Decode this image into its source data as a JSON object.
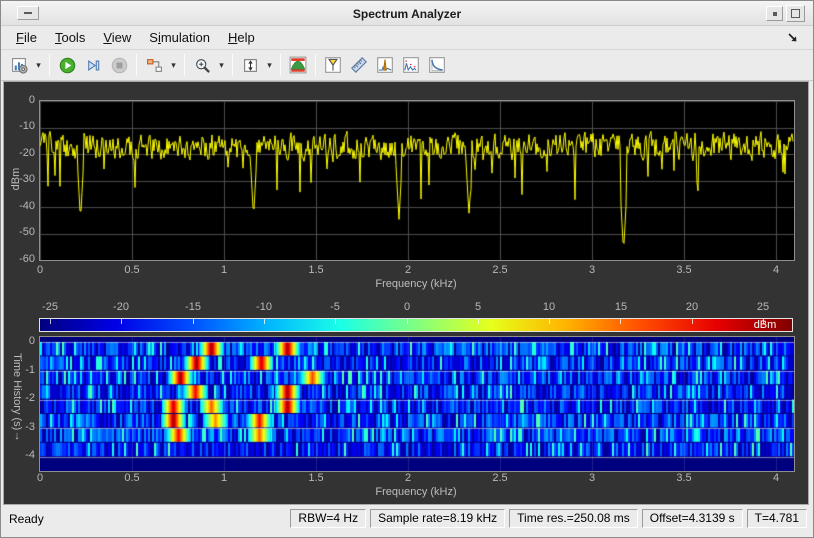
{
  "window": {
    "title": "Spectrum Analyzer",
    "controls": [
      "window-menu",
      "minimize",
      "maximize"
    ]
  },
  "menu": {
    "items": [
      {
        "pre": "",
        "key": "F",
        "post": "ile"
      },
      {
        "pre": "",
        "key": "T",
        "post": "ools"
      },
      {
        "pre": "",
        "key": "V",
        "post": "iew"
      },
      {
        "pre": "S",
        "key": "i",
        "post": "mulation"
      },
      {
        "pre": "",
        "key": "H",
        "post": "elp"
      }
    ],
    "dock_icon": "dock-arrow"
  },
  "toolbar": {
    "caret": "▾",
    "buttons": [
      "scope-settings",
      "run",
      "step-forward",
      "stop",
      "source-select",
      "zoom-in",
      "span-xy",
      "spectrogram-toggle",
      "cursor-measurements",
      "signal-statistics",
      "peak-finder",
      "distortion-measurements",
      "ccdf-measurements"
    ]
  },
  "spectrum": {
    "ylabel": "dBm",
    "xlabel": "Frequency (kHz)",
    "yticks": [
      "0",
      "-10",
      "-20",
      "-30",
      "-40",
      "-50",
      "-60"
    ],
    "xticks": [
      "0",
      "0.5",
      "1",
      "1.5",
      "2",
      "2.5",
      "3",
      "3.5",
      "4"
    ]
  },
  "colorbar": {
    "label": "dBm",
    "ticks": [
      "-25",
      "-20",
      "-15",
      "-10",
      "-5",
      "0",
      "5",
      "10",
      "15",
      "20",
      "25"
    ]
  },
  "spectrogram": {
    "ylabel": "Time History (s)",
    "ylabel_arrow": "↓",
    "xlabel": "Frequency (kHz)",
    "yticks": [
      "0",
      "-1",
      "-2",
      "-3",
      "-4"
    ],
    "xticks": [
      "0",
      "0.5",
      "1",
      "1.5",
      "2",
      "2.5",
      "3",
      "3.5",
      "4"
    ]
  },
  "statusbar": {
    "ready": "Ready",
    "fields": [
      "RBW=4 Hz",
      "Sample rate=8.19 kHz",
      "Time res.=250.08 ms",
      "Offset=4.3139 s",
      "T=4.781"
    ]
  },
  "chart_data": [
    {
      "type": "line",
      "title": "Spectrum",
      "xlabel": "Frequency (kHz)",
      "ylabel": "dBm",
      "xlim": [
        0,
        4.096
      ],
      "ylim": [
        -60,
        0
      ],
      "grid": true,
      "bg": "#000000",
      "line_color": "#ffff00",
      "series": [
        {
          "name": "spectrum-trace",
          "noise_floor_dbm": -17,
          "noise_peak_to_peak_db": 13,
          "notable_dips": [
            {
              "x_khz": 0.22,
              "y_dbm": -45
            },
            {
              "x_khz": 1.16,
              "y_dbm": -44
            },
            {
              "x_khz": 1.95,
              "y_dbm": -45
            },
            {
              "x_khz": 2.33,
              "y_dbm": -43
            },
            {
              "x_khz": 3.17,
              "y_dbm": -57
            }
          ]
        }
      ]
    },
    {
      "type": "heatmap",
      "title": "Spectrogram Time History",
      "xlabel": "Frequency (kHz)",
      "ylabel": "Time History (s)",
      "xlim": [
        0,
        4.096
      ],
      "ylim": [
        -4.1,
        0
      ],
      "colormap": "jet",
      "colorbar_range_dbm": [
        -25,
        25
      ],
      "noise_floor_range_dbm": [
        -26,
        -12
      ],
      "hot_spots": [
        {
          "f_khz": 0.93,
          "time_row": 0,
          "strength": 1
        },
        {
          "f_khz": 1.34,
          "time_row": 0,
          "strength": 1
        },
        {
          "f_khz": 0.85,
          "time_row": 1,
          "strength": 1
        },
        {
          "f_khz": 1.2,
          "time_row": 1,
          "strength": 0.9
        },
        {
          "f_khz": 0.76,
          "time_row": 2,
          "strength": 1
        },
        {
          "f_khz": 1.48,
          "time_row": 2,
          "strength": 0.65
        },
        {
          "f_khz": 0.84,
          "time_row": 3,
          "strength": 0.8
        },
        {
          "f_khz": 1.34,
          "time_row": 3,
          "strength": 1
        },
        {
          "f_khz": 0.72,
          "time_row": 4,
          "strength": 0.9
        },
        {
          "f_khz": 0.93,
          "time_row": 4,
          "strength": 0.6
        },
        {
          "f_khz": 1.34,
          "time_row": 4,
          "strength": 1
        },
        {
          "f_khz": 0.72,
          "time_row": 5,
          "strength": 1
        },
        {
          "f_khz": 0.95,
          "time_row": 5,
          "strength": 0.5
        },
        {
          "f_khz": 1.19,
          "time_row": 5,
          "strength": 0.8
        },
        {
          "f_khz": 0.75,
          "time_row": 6,
          "strength": 0.8
        },
        {
          "f_khz": 1.19,
          "time_row": 6,
          "strength": 0.6
        }
      ]
    }
  ]
}
